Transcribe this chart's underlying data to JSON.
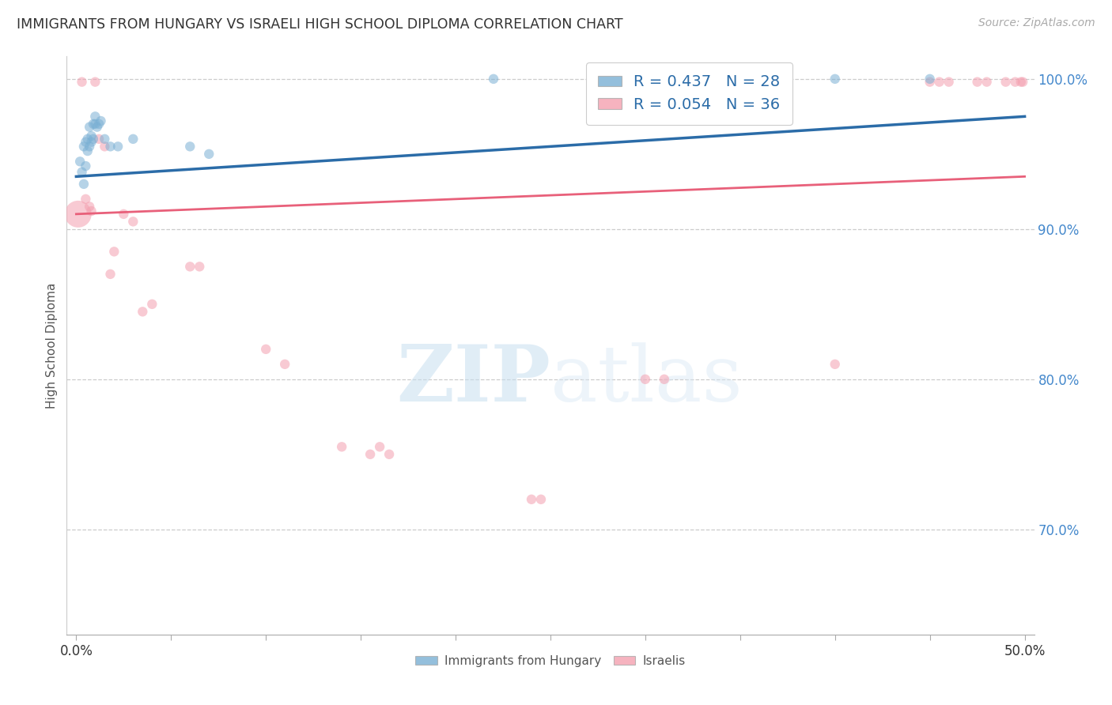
{
  "title": "IMMIGRANTS FROM HUNGARY VS ISRAELI HIGH SCHOOL DIPLOMA CORRELATION CHART",
  "source": "Source: ZipAtlas.com",
  "ylabel": "High School Diploma",
  "yticks_right": [
    "100.0%",
    "90.0%",
    "80.0%",
    "70.0%"
  ],
  "yticks_right_vals": [
    1.0,
    0.9,
    0.8,
    0.7
  ],
  "legend_blue_r": "R = 0.437",
  "legend_blue_n": "N = 28",
  "legend_pink_r": "R = 0.054",
  "legend_pink_n": "N = 36",
  "legend_blue_label": "Immigrants from Hungary",
  "legend_pink_label": "Israelis",
  "blue_scatter_x": [
    0.002,
    0.003,
    0.004,
    0.004,
    0.005,
    0.005,
    0.006,
    0.006,
    0.007,
    0.007,
    0.008,
    0.008,
    0.009,
    0.009,
    0.01,
    0.01,
    0.011,
    0.012,
    0.013,
    0.015,
    0.018,
    0.022,
    0.03,
    0.06,
    0.07,
    0.22,
    0.4,
    0.45
  ],
  "blue_scatter_y": [
    0.945,
    0.938,
    0.93,
    0.955,
    0.958,
    0.942,
    0.96,
    0.952,
    0.968,
    0.955,
    0.962,
    0.958,
    0.97,
    0.96,
    0.97,
    0.975,
    0.968,
    0.97,
    0.972,
    0.96,
    0.955,
    0.955,
    0.96,
    0.955,
    0.95,
    1.0,
    1.0,
    1.0
  ],
  "blue_scatter_sizes": [
    80,
    80,
    80,
    80,
    80,
    80,
    80,
    80,
    80,
    80,
    80,
    80,
    80,
    80,
    80,
    80,
    80,
    80,
    80,
    80,
    80,
    80,
    80,
    80,
    80,
    80,
    80,
    80
  ],
  "blue_trend_x": [
    0.0,
    0.5
  ],
  "blue_trend_y": [
    0.935,
    0.975
  ],
  "pink_scatter_x": [
    0.001,
    0.003,
    0.005,
    0.007,
    0.008,
    0.01,
    0.012,
    0.015,
    0.018,
    0.02,
    0.025,
    0.03,
    0.035,
    0.04,
    0.06,
    0.065,
    0.1,
    0.11,
    0.14,
    0.155,
    0.16,
    0.165,
    0.24,
    0.245,
    0.3,
    0.31,
    0.4,
    0.45,
    0.455,
    0.46,
    0.475,
    0.48,
    0.49,
    0.495,
    0.498,
    0.499
  ],
  "pink_scatter_y": [
    0.91,
    0.998,
    0.92,
    0.915,
    0.912,
    0.998,
    0.96,
    0.955,
    0.87,
    0.885,
    0.91,
    0.905,
    0.845,
    0.85,
    0.875,
    0.875,
    0.82,
    0.81,
    0.755,
    0.75,
    0.755,
    0.75,
    0.72,
    0.72,
    0.8,
    0.8,
    0.81,
    0.998,
    0.998,
    0.998,
    0.998,
    0.998,
    0.998,
    0.998,
    0.998,
    0.998
  ],
  "pink_scatter_sizes": [
    600,
    80,
    80,
    80,
    80,
    80,
    80,
    80,
    80,
    80,
    80,
    80,
    80,
    80,
    80,
    80,
    80,
    80,
    80,
    80,
    80,
    80,
    80,
    80,
    80,
    80,
    80,
    80,
    80,
    80,
    80,
    80,
    80,
    80,
    80,
    80
  ],
  "pink_trend_x": [
    0.0,
    0.5
  ],
  "pink_trend_y": [
    0.91,
    0.935
  ],
  "xlim": [
    -0.005,
    0.505
  ],
  "ylim": [
    0.63,
    1.015
  ],
  "xtick_positions": [
    0.0,
    0.05,
    0.1,
    0.15,
    0.2,
    0.25,
    0.3,
    0.35,
    0.4,
    0.45,
    0.5
  ],
  "blue_color": "#7ab0d4",
  "pink_color": "#f4a0b0",
  "blue_line_color": "#2b6ca8",
  "pink_line_color": "#e8607a",
  "watermark_zip": "ZIP",
  "watermark_atlas": "atlas",
  "background_color": "#ffffff",
  "grid_color": "#cccccc",
  "right_tick_color": "#4488cc"
}
